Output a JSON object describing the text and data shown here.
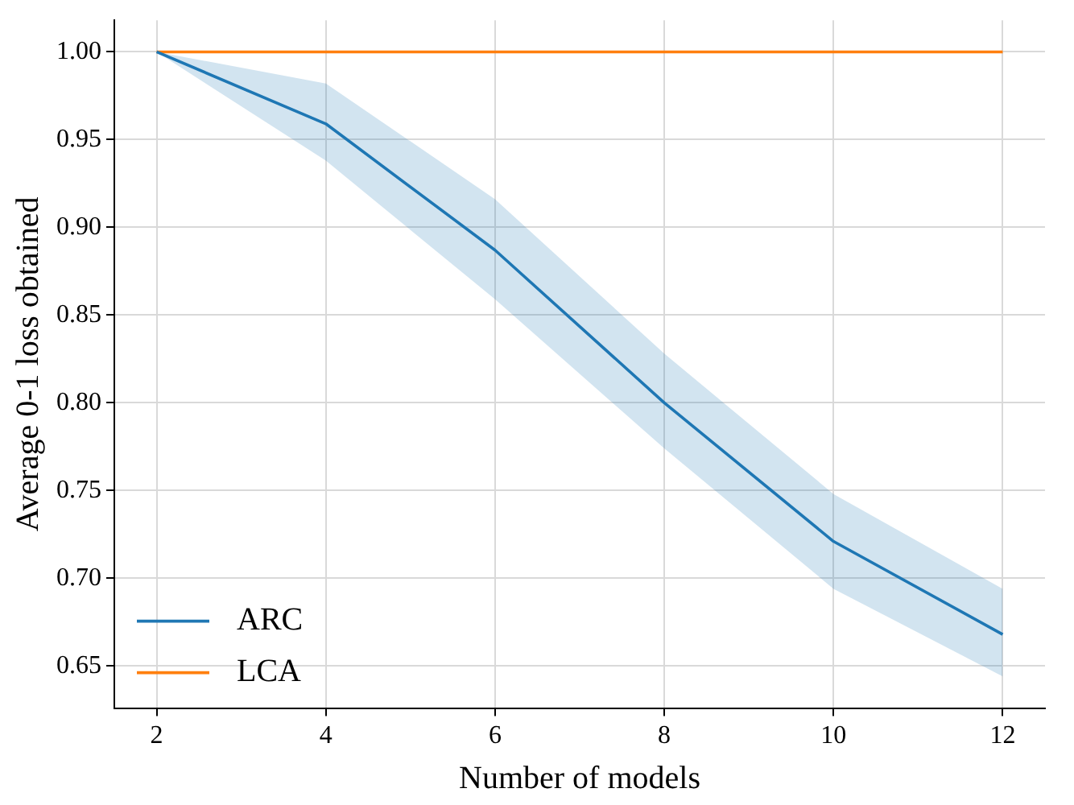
{
  "chart_data": {
    "type": "line",
    "xlabel": "Number of models",
    "ylabel": "Average 0-1 loss obtained",
    "x": [
      2,
      4,
      6,
      8,
      10,
      12
    ],
    "series": [
      {
        "name": "ARC",
        "color": "#1f77b4",
        "values": [
          1.0,
          0.959,
          0.887,
          0.8,
          0.721,
          0.668
        ],
        "lower": [
          1.0,
          0.938,
          0.859,
          0.774,
          0.694,
          0.644
        ],
        "upper": [
          1.0,
          0.982,
          0.916,
          0.828,
          0.748,
          0.694
        ]
      },
      {
        "name": "LCA",
        "color": "#ff7f0e",
        "values": [
          1.0,
          1.0,
          1.0,
          1.0,
          1.0,
          1.0
        ]
      }
    ],
    "xlim": [
      1.5,
      12.5
    ],
    "xticks": [
      2,
      4,
      6,
      8,
      10,
      12
    ],
    "ylim": [
      0.626,
      1.018
    ],
    "yticks": [
      {
        "value": 0.65,
        "label": "0.65"
      },
      {
        "value": 0.7,
        "label": "0.70"
      },
      {
        "value": 0.75,
        "label": "0.75"
      },
      {
        "value": 0.8,
        "label": "0.80"
      },
      {
        "value": 0.85,
        "label": "0.85"
      },
      {
        "value": 0.9,
        "label": "0.90"
      },
      {
        "value": 0.95,
        "label": "0.95"
      },
      {
        "value": 1.0,
        "label": "1.00"
      }
    ],
    "grid": true,
    "legend": "bottom left",
    "marker": "none",
    "line_style": "solid"
  }
}
